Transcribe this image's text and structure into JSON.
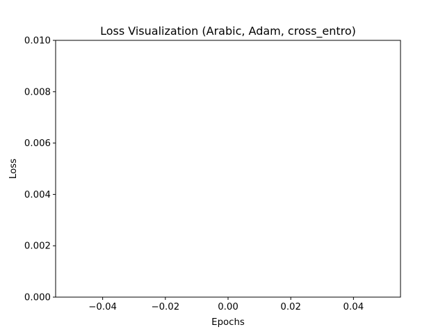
{
  "chart_data": {
    "type": "line",
    "title": "Loss Visualization (Arabic, Adam, cross_entro)",
    "xlabel": "Epochs",
    "ylabel": "Loss",
    "series": [],
    "xlim": [
      -0.055,
      0.055
    ],
    "ylim": [
      0.0,
      0.01
    ],
    "xticks": [
      -0.04,
      -0.02,
      0.0,
      0.02,
      0.04
    ],
    "xtick_labels": [
      "−0.04",
      "−0.02",
      "0.00",
      "0.02",
      "0.04"
    ],
    "yticks": [
      0.0,
      0.002,
      0.004,
      0.006,
      0.008,
      0.01
    ],
    "ytick_labels": [
      "0.000",
      "0.002",
      "0.004",
      "0.006",
      "0.008",
      "0.010"
    ],
    "grid": false,
    "legend": "none"
  }
}
